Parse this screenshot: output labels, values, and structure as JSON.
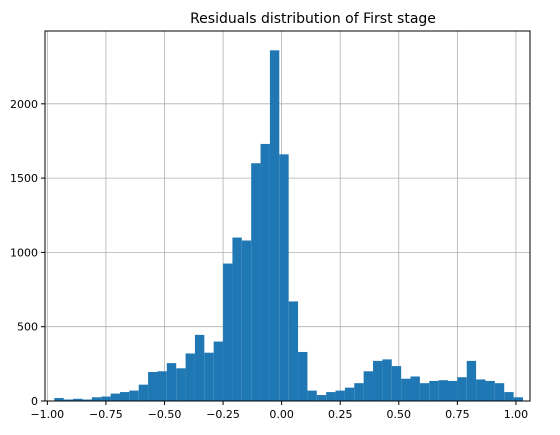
{
  "chart_data": {
    "type": "bar",
    "title": "Residuals distribution of First stage",
    "xlabel": "",
    "ylabel": "",
    "xlim": [
      -1.01,
      1.06
    ],
    "ylim": [
      0,
      2490
    ],
    "grid": true,
    "bar_color": "#1f77b4",
    "bin_start": -0.97,
    "bin_width": 0.04,
    "values": [
      20,
      10,
      15,
      10,
      25,
      30,
      50,
      60,
      70,
      110,
      195,
      200,
      255,
      220,
      320,
      445,
      325,
      400,
      925,
      1100,
      1080,
      1600,
      1730,
      2360,
      1660,
      670,
      330,
      70,
      40,
      60,
      70,
      90,
      120,
      200,
      270,
      280,
      235,
      150,
      165,
      120,
      135,
      140,
      135,
      160,
      270,
      145,
      135,
      120,
      60,
      25
    ],
    "x_ticks": [
      -1.0,
      -0.75,
      -0.5,
      -0.25,
      0.0,
      0.25,
      0.5,
      0.75,
      1.0
    ],
    "x_tick_labels": [
      "−1.00",
      "−0.75",
      "−0.50",
      "−0.25",
      "0.00",
      "0.25",
      "0.50",
      "0.75",
      "1.00"
    ],
    "y_ticks": [
      0,
      500,
      1000,
      1500,
      2000
    ],
    "y_tick_labels": [
      "0",
      "500",
      "1000",
      "1500",
      "2000"
    ]
  }
}
